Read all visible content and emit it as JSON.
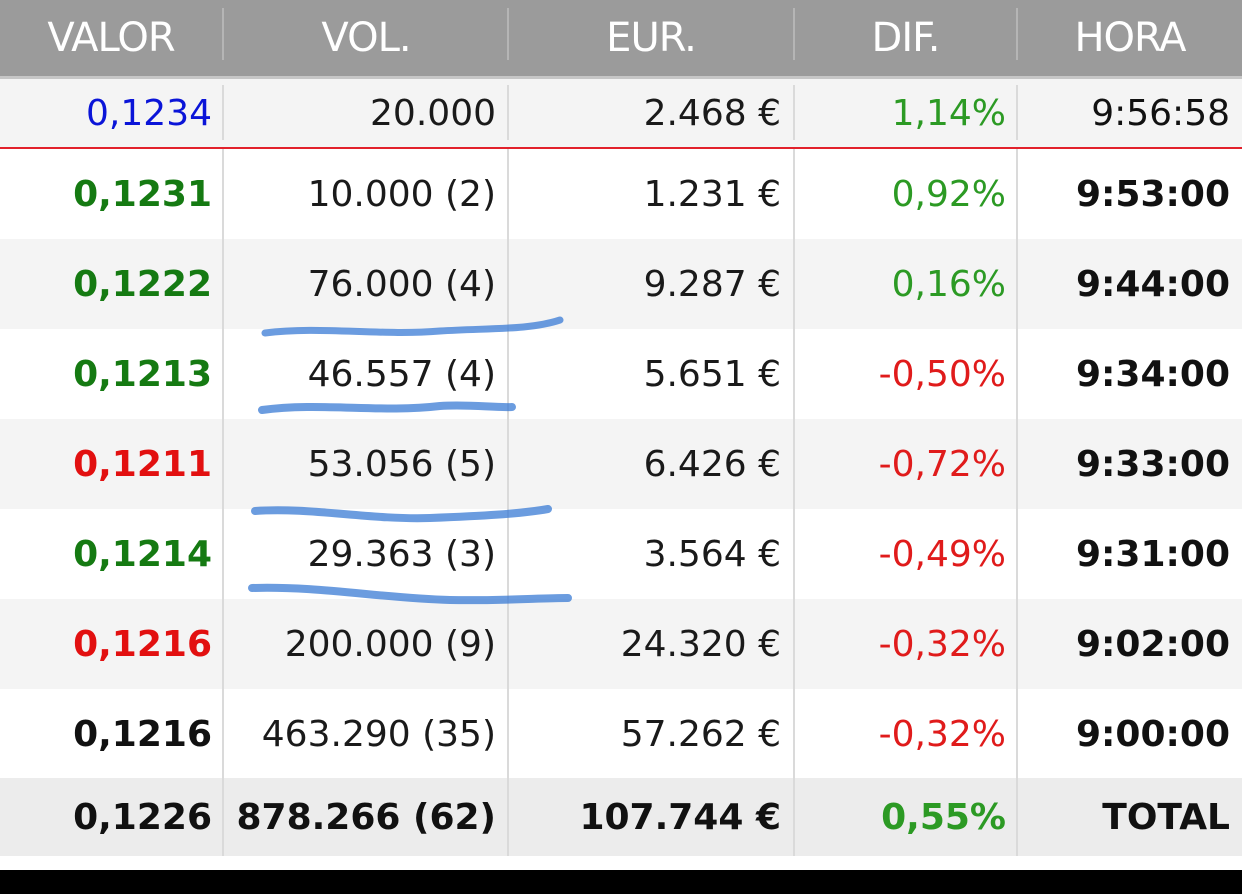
{
  "header": {
    "columns": [
      "VALOR",
      "VOL.",
      "EUR.",
      "DIF.",
      "HORA"
    ]
  },
  "latest": {
    "valor": "0,1234",
    "vol": "20.000",
    "eur": "2.468 €",
    "dif": "1,14%",
    "hora": "9:56:58",
    "valor_color": "#0a14d8",
    "dif_color": "#2c9a24"
  },
  "rows": [
    {
      "valor": "0,1231",
      "vol": "10.000 (2)",
      "eur": "1.231 €",
      "dif": "0,92%",
      "hora": "9:53:00",
      "valor_color": "green",
      "dif_color": "green"
    },
    {
      "valor": "0,1222",
      "vol": "76.000 (4)",
      "eur": "9.287 €",
      "dif": "0,16%",
      "hora": "9:44:00",
      "valor_color": "green",
      "dif_color": "green"
    },
    {
      "valor": "0,1213",
      "vol": "46.557 (4)",
      "eur": "5.651 €",
      "dif": "-0,50%",
      "hora": "9:34:00",
      "valor_color": "green",
      "dif_color": "red"
    },
    {
      "valor": "0,1211",
      "vol": "53.056 (5)",
      "eur": "6.426 €",
      "dif": "-0,72%",
      "hora": "9:33:00",
      "valor_color": "red",
      "dif_color": "red"
    },
    {
      "valor": "0,1214",
      "vol": "29.363 (3)",
      "eur": "3.564 €",
      "dif": "-0,49%",
      "hora": "9:31:00",
      "valor_color": "green",
      "dif_color": "red"
    },
    {
      "valor": "0,1216",
      "vol": "200.000 (9)",
      "eur": "24.320 €",
      "dif": "-0,32%",
      "hora": "9:02:00",
      "valor_color": "red",
      "dif_color": "red"
    },
    {
      "valor": "0,1216",
      "vol": "463.290 (35)",
      "eur": "57.262 €",
      "dif": "-0,32%",
      "hora": "9:00:00",
      "valor_color": "black",
      "dif_color": "red"
    }
  ],
  "total": {
    "valor": "0,1226",
    "vol": "878.266 (62)",
    "eur": "107.744 €",
    "dif": "0,55%",
    "hora": "TOTAL",
    "dif_color": "green"
  },
  "colors": {
    "header_bg": "#9b9b9b",
    "latest_separator": "#e2212b",
    "scribble": "#3a7bd5"
  }
}
